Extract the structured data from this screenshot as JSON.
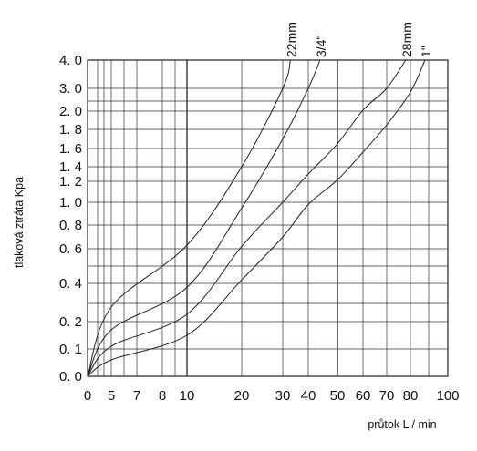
{
  "chart_data": {
    "type": "line",
    "title": "",
    "xlabel": "průtok L / min",
    "ylabel": "tlaková ztráta Kpa",
    "xlim": [
      0,
      100
    ],
    "ylim": [
      0.0,
      4.0
    ],
    "grid": true,
    "legend": "none",
    "x_ticks": [
      {
        "value": 0,
        "label": "0"
      },
      {
        "value": 5,
        "label": "5"
      },
      {
        "value": 7,
        "label": "7"
      },
      {
        "value": 8,
        "label": "8"
      },
      {
        "value": 10,
        "label": "10"
      },
      {
        "value": 20,
        "label": "20"
      },
      {
        "value": 30,
        "label": "30"
      },
      {
        "value": 40,
        "label": "40"
      },
      {
        "value": 50,
        "label": "50"
      },
      {
        "value": 60,
        "label": "60"
      },
      {
        "value": 70,
        "label": "70"
      },
      {
        "value": 80,
        "label": "80"
      },
      {
        "value": 100,
        "label": "100"
      }
    ],
    "x_grid_only": [
      3,
      4,
      6,
      9,
      90
    ],
    "x_major_lines": [
      10,
      50
    ],
    "y_ticks": [
      {
        "value": 0.0,
        "label": "0. 0"
      },
      {
        "value": 0.1,
        "label": "0. 1"
      },
      {
        "value": 0.2,
        "label": "0. 2"
      },
      {
        "value": 0.4,
        "label": "0. 4"
      },
      {
        "value": 0.6,
        "label": "0. 6"
      },
      {
        "value": 0.8,
        "label": "0. 8"
      },
      {
        "value": 1.0,
        "label": "1. 0"
      },
      {
        "value": 1.2,
        "label": "1. 2"
      },
      {
        "value": 1.4,
        "label": "1. 4"
      },
      {
        "value": 1.6,
        "label": "1. 6"
      },
      {
        "value": 1.8,
        "label": "1. 8"
      },
      {
        "value": 2.0,
        "label": "2. 0"
      },
      {
        "value": 3.0,
        "label": "3. 0"
      },
      {
        "value": 4.0,
        "label": "4. 0"
      }
    ],
    "y_grid_only": [
      0.3,
      0.5,
      2.5
    ],
    "series": [
      {
        "name": "22mm",
        "x": [
          0,
          5,
          10,
          20,
          30,
          33
        ],
        "y": [
          0.0,
          0.28,
          0.63,
          1.4,
          3.0,
          4.0
        ]
      },
      {
        "name": "3/4\"",
        "x": [
          0,
          5,
          10,
          20,
          30,
          40,
          44
        ],
        "y": [
          0.0,
          0.17,
          0.38,
          0.95,
          1.7,
          3.0,
          4.0
        ]
      },
      {
        "name": "28mm",
        "x": [
          0,
          5,
          10,
          20,
          30,
          40,
          50,
          60,
          70,
          78
        ],
        "y": [
          0.0,
          0.11,
          0.24,
          0.62,
          1.0,
          1.3,
          1.65,
          2.05,
          3.0,
          4.0
        ]
      },
      {
        "name": "1\"",
        "x": [
          0,
          5,
          10,
          20,
          30,
          40,
          50,
          60,
          70,
          80,
          88
        ],
        "y": [
          0.0,
          0.06,
          0.15,
          0.42,
          0.7,
          0.98,
          1.22,
          1.56,
          1.85,
          2.85,
          4.0
        ]
      }
    ]
  }
}
